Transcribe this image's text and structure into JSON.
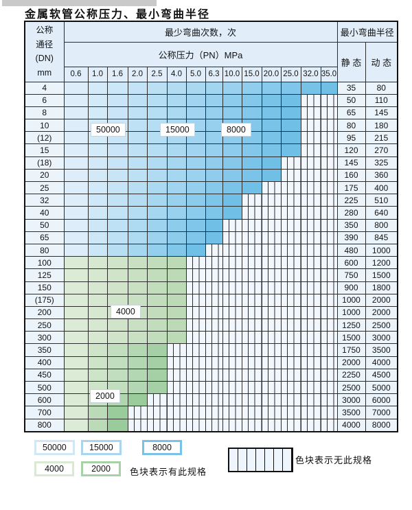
{
  "page": {
    "title": "金属软管公称压力、最小弯曲半径"
  },
  "table": {
    "dn_header": [
      "公称",
      "通径",
      "(DN)",
      "mm"
    ],
    "bend_cycles_header": "最少弯曲次数，次",
    "pressure_header": "公称压力（PN）MPa",
    "radius_header": "最小弯曲半径",
    "static_header": "静 态",
    "dynamic_header": "动 态",
    "pressure_columns": [
      "0.6",
      "1.0",
      "1.6",
      "2.0",
      "2.5",
      "4.0",
      "5.0",
      "6.3",
      "10.0",
      "15.0",
      "20.0",
      "25.0",
      "32.0",
      "35.0"
    ],
    "cycle_labels": [
      "50000",
      "15000",
      "8000",
      "4000",
      "2000"
    ]
  },
  "chart_data": {
    "type": "table",
    "title": "金属软管公称压力、最小弯曲半径",
    "pressure_columns_mpa": [
      0.6,
      1.0,
      1.6,
      2.0,
      2.5,
      4.0,
      5.0,
      6.3,
      10.0,
      15.0,
      20.0,
      25.0,
      32.0,
      35.0
    ],
    "cycle_zones": [
      {
        "cycles": "50000",
        "shade": "light-blue"
      },
      {
        "cycles": "15000",
        "shade": "medium-blue"
      },
      {
        "cycles": "8000",
        "shade": "dark-blue"
      },
      {
        "cycles": "4000",
        "shade": "light-green"
      },
      {
        "cycles": "2000",
        "shade": "medium-green"
      }
    ],
    "rows": [
      {
        "dn": "4",
        "colored": 14,
        "max_pn": "35.0",
        "zone": "blue",
        "static": "35",
        "dynamic": "80"
      },
      {
        "dn": "6",
        "colored": 12,
        "max_pn": "25.0",
        "zone": "blue",
        "static": "50",
        "dynamic": "110"
      },
      {
        "dn": "8",
        "colored": 12,
        "max_pn": "25.0",
        "zone": "blue",
        "static": "65",
        "dynamic": "145"
      },
      {
        "dn": "10",
        "colored": 12,
        "max_pn": "25.0",
        "zone": "blue",
        "static": "80",
        "dynamic": "180"
      },
      {
        "dn": "(12)",
        "colored": 12,
        "max_pn": "25.0",
        "zone": "blue",
        "static": "95",
        "dynamic": "215"
      },
      {
        "dn": "15",
        "colored": 12,
        "max_pn": "25.0",
        "zone": "blue",
        "static": "120",
        "dynamic": "270"
      },
      {
        "dn": "(18)",
        "colored": 11,
        "max_pn": "20.0",
        "zone": "blue",
        "static": "145",
        "dynamic": "325"
      },
      {
        "dn": "20",
        "colored": 11,
        "max_pn": "20.0",
        "zone": "blue",
        "static": "160",
        "dynamic": "360"
      },
      {
        "dn": "25",
        "colored": 10,
        "max_pn": "15.0",
        "zone": "blue",
        "static": "175",
        "dynamic": "400"
      },
      {
        "dn": "32",
        "colored": 9,
        "max_pn": "10.0",
        "zone": "blue",
        "static": "225",
        "dynamic": "510"
      },
      {
        "dn": "40",
        "colored": 9,
        "max_pn": "10.0",
        "zone": "blue",
        "static": "280",
        "dynamic": "640"
      },
      {
        "dn": "50",
        "colored": 8,
        "max_pn": "6.3",
        "zone": "blue",
        "static": "350",
        "dynamic": "800"
      },
      {
        "dn": "65",
        "colored": 8,
        "max_pn": "6.3",
        "zone": "blue",
        "static": "390",
        "dynamic": "845"
      },
      {
        "dn": "80",
        "colored": 7,
        "max_pn": "5.0",
        "zone": "blue",
        "static": "480",
        "dynamic": "1000"
      },
      {
        "dn": "100",
        "colored": 6,
        "max_pn": "4.0",
        "zone": "green",
        "static": "600",
        "dynamic": "1200"
      },
      {
        "dn": "125",
        "colored": 6,
        "max_pn": "4.0",
        "zone": "green",
        "static": "750",
        "dynamic": "1500"
      },
      {
        "dn": "150",
        "colored": 6,
        "max_pn": "4.0",
        "zone": "green",
        "static": "900",
        "dynamic": "1800"
      },
      {
        "dn": "(175)",
        "colored": 6,
        "max_pn": "4.0",
        "zone": "green",
        "static": "1000",
        "dynamic": "2000"
      },
      {
        "dn": "200",
        "colored": 6,
        "max_pn": "4.0",
        "zone": "green",
        "static": "1000",
        "dynamic": "2000"
      },
      {
        "dn": "250",
        "colored": 6,
        "max_pn": "4.0",
        "zone": "green",
        "static": "1250",
        "dynamic": "2500"
      },
      {
        "dn": "300",
        "colored": 6,
        "max_pn": "4.0",
        "zone": "green",
        "static": "1500",
        "dynamic": "3000"
      },
      {
        "dn": "350",
        "colored": 5,
        "max_pn": "2.5",
        "zone": "green",
        "static": "1750",
        "dynamic": "3500"
      },
      {
        "dn": "400",
        "colored": 5,
        "max_pn": "2.5",
        "zone": "green",
        "static": "2000",
        "dynamic": "4000"
      },
      {
        "dn": "450",
        "colored": 5,
        "max_pn": "2.5",
        "zone": "green",
        "static": "2250",
        "dynamic": "4500"
      },
      {
        "dn": "500",
        "colored": 5,
        "max_pn": "2.5",
        "zone": "green",
        "static": "2500",
        "dynamic": "5000"
      },
      {
        "dn": "600",
        "colored": 4,
        "max_pn": "2.0",
        "zone": "green",
        "static": "3000",
        "dynamic": "6000"
      },
      {
        "dn": "700",
        "colored": 3,
        "max_pn": "1.6",
        "zone": "green",
        "static": "3500",
        "dynamic": "7000"
      },
      {
        "dn": "800",
        "colored": 3,
        "max_pn": "1.6",
        "zone": "green",
        "static": "4000",
        "dynamic": "8000"
      }
    ]
  },
  "legend": {
    "items": [
      {
        "label": "50000",
        "color": "#cfe7f7"
      },
      {
        "label": "15000",
        "color": "#a9d5f0"
      },
      {
        "label": "8000",
        "color": "#79c2e7"
      },
      {
        "label": "4000",
        "color": "#d9e9d3"
      },
      {
        "label": "2000",
        "color": "#a5d2a6"
      }
    ],
    "has_spec_note": "色块表示有此规格",
    "no_spec_note": "色块表示无此规格"
  },
  "colors": {
    "blue_light": "#ddeefa",
    "blue_dark": "#6fbfe7",
    "green_light": "#dcebd5",
    "green_dark_hi": "#bcdab6",
    "green_dark_mid": "#a5d0a6",
    "green_dark_lo": "#99cb9b",
    "header_bg": "#e1eef9",
    "side_bg": "#ecf4fb",
    "hatch_bg": "#f2f7fd",
    "grid_line": "#2b2b2b"
  }
}
